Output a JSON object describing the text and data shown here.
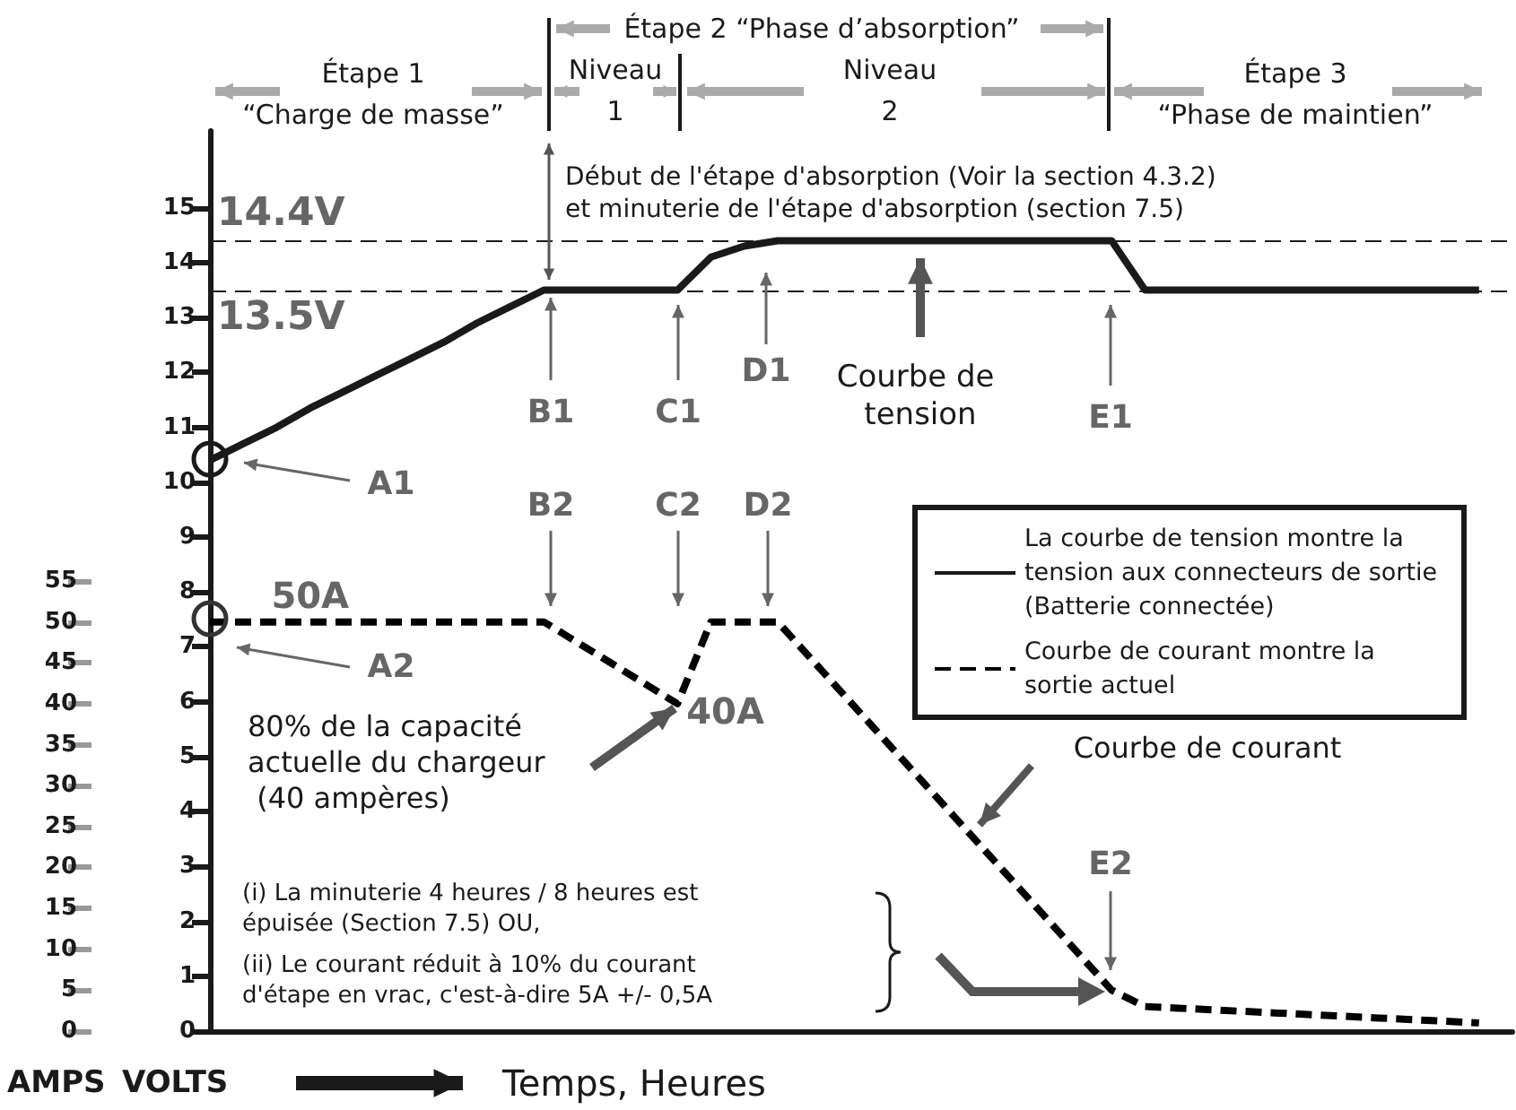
{
  "chart_data": {
    "type": "line",
    "xlabel": "Temps, Heures",
    "ylabel": "VOLTS",
    "y2label": "AMPS",
    "categories": [
      null,
      null,
      null,
      null,
      null,
      null,
      null,
      null,
      null,
      null,
      null,
      null,
      null,
      null,
      null,
      null,
      null,
      null,
      null,
      null,
      null,
      null,
      null,
      null,
      null,
      null,
      null,
      null,
      null,
      null,
      null,
      null,
      null,
      null,
      null,
      null,
      null,
      null,
      null,
      null
    ],
    "series": [
      {
        "name": "La courbe de tension montre la tension aux connecteurs de sortie (Batterie connectée)",
        "color": "#1a1a1a",
        "line_style": "solid",
        "values": [
          10.4,
          10.7,
          11.0,
          11.35,
          11.65,
          11.95,
          12.25,
          12.55,
          12.9,
          13.2,
          13.5,
          13.5,
          13.5,
          13.5,
          13.5,
          14.1,
          14.3,
          14.4,
          14.4,
          14.4,
          14.4,
          14.4,
          14.4,
          14.4,
          14.4,
          14.4,
          14.4,
          14.4,
          13.5,
          13.5,
          13.5,
          13.5,
          13.5,
          13.5,
          13.5,
          13.5,
          13.5,
          13.5,
          13.5,
          null
        ]
      },
      {
        "name": "Courbe de courant montre la sortie actuel",
        "color": "#000000",
        "line_style": "dashed",
        "axis": "y2",
        "values": [
          50,
          50,
          50,
          50,
          50,
          50,
          50,
          50,
          50,
          50,
          50,
          47.5,
          45,
          42.5,
          40,
          50,
          50,
          50,
          45.5,
          41,
          36.5,
          32,
          27.5,
          23,
          18.5,
          14,
          9.5,
          5,
          3,
          2.8,
          2.6,
          2.4,
          2.2,
          2,
          1.8,
          1.6,
          1.4,
          1.2,
          1.0,
          null
        ],
        "value_labels": [
          null,
          null,
          null,
          "50A",
          null,
          null,
          null,
          null,
          null,
          null,
          null,
          null,
          null,
          null,
          "40A",
          null,
          null,
          null,
          null,
          null,
          null,
          null,
          null,
          null,
          null,
          null,
          null,
          null,
          null,
          null,
          null,
          null,
          null,
          null,
          null,
          null,
          null,
          null,
          null,
          null
        ]
      }
    ],
    "ylim": [
      0,
      16.4
    ],
    "yticks": [
      0,
      1,
      2,
      3,
      4,
      5,
      6,
      7,
      8,
      9,
      10,
      11,
      12,
      13,
      14,
      15
    ],
    "y2lim": [
      0,
      110
    ],
    "y2ticks": [
      0,
      5,
      10,
      15,
      20,
      25,
      30,
      35,
      40,
      45,
      50,
      55
    ],
    "ref_lines": [
      {
        "axis": "y",
        "value": 14.4,
        "label": "14.4V",
        "line_style": "dashed"
      },
      {
        "axis": "y",
        "value": 13.5,
        "label": "13.5V",
        "line_style": "dashed"
      }
    ],
    "grid": false,
    "legend": "right",
    "tick_labels": "y",
    "annotations": [
      "Étape 1",
      "“Charge de masse”",
      "Étape 2 “Phase d’absorption”",
      "Niveau",
      "1",
      "Niveau",
      "2",
      "Étape 3",
      "“Phase de maintien”",
      "Début de l'étape d'absorption (Voir la section 4.3.2)",
      "et minuterie de l'étape d'absorption (section 7.5)",
      "Courbe de tension",
      "A1",
      "B1",
      "C1",
      "D1",
      "E1",
      "A2",
      "B2",
      "C2",
      "D2",
      "E2",
      "80% de la capacité actuelle du chargeur (40 ampères)",
      "(i) La minuterie 4 heures / 8 heures est épuisée (Section 7.5) OU,",
      "(ii) Le courant réduit à 10% du courant d'étape en vrac, c'est-à-dire 5A +/- 0,5A",
      "Courbe de courant"
    ]
  }
}
